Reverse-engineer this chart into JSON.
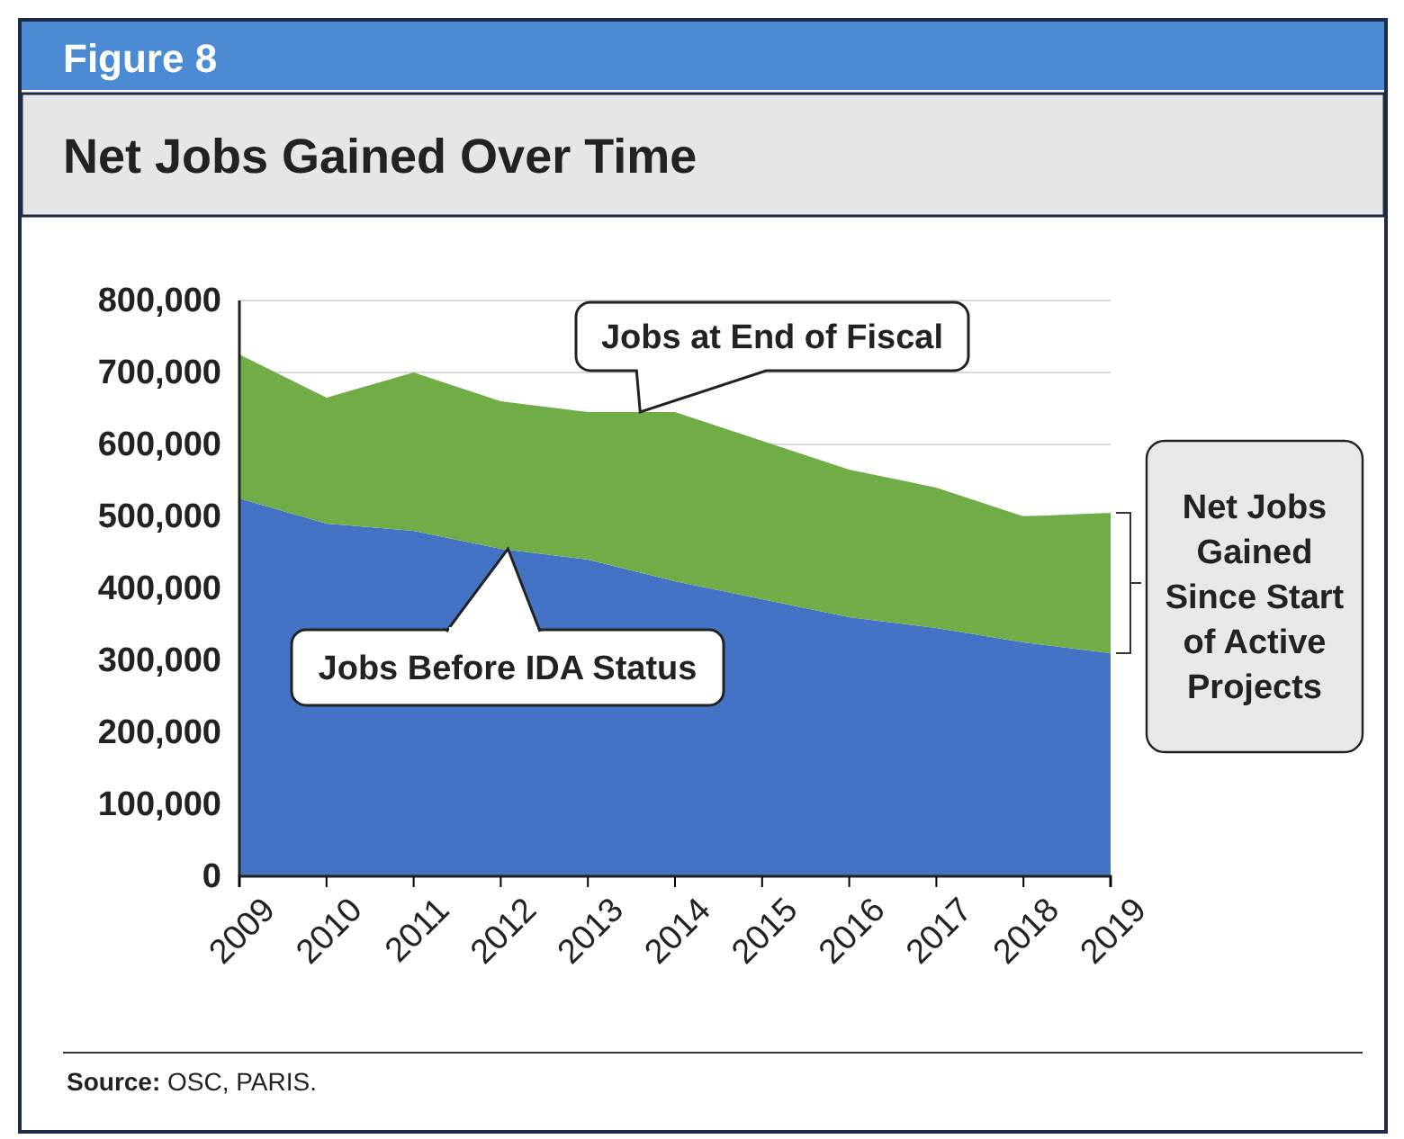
{
  "chart_data": {
    "type": "area",
    "title": "Net Jobs Gained Over Time",
    "subtitle": "Figure 8",
    "x": [
      2009,
      2010,
      2011,
      2012,
      2013,
      2014,
      2015,
      2016,
      2017,
      2018,
      2019
    ],
    "xlim": [
      2009,
      2019
    ],
    "xticks": [
      2009,
      2010,
      2011,
      2012,
      2013,
      2014,
      2015,
      2016,
      2017,
      2018,
      2019
    ],
    "ylim": [
      0,
      800000
    ],
    "yticks": [
      {
        "value": 0,
        "label": "0"
      },
      {
        "value": 100000,
        "label": "100,000"
      },
      {
        "value": 200000,
        "label": "200,000"
      },
      {
        "value": 300000,
        "label": "300,000"
      },
      {
        "value": 400000,
        "label": "400,000"
      },
      {
        "value": 500000,
        "label": "500,000"
      },
      {
        "value": 600000,
        "label": "600,000"
      },
      {
        "value": 700000,
        "label": "700,000"
      },
      {
        "value": 800000,
        "label": "800,000"
      }
    ],
    "stacked": true,
    "grid": "y",
    "series": [
      {
        "name": "Jobs Before IDA Status",
        "color": "#4472c4",
        "values": [
          525000,
          490000,
          480000,
          455000,
          440000,
          410000,
          385000,
          360000,
          345000,
          325000,
          310000
        ]
      },
      {
        "name": "Net Jobs Gained Since Start of Active Projects",
        "color": "#70ad47",
        "values": [
          200000,
          175000,
          220000,
          205000,
          205000,
          235000,
          220000,
          205000,
          195000,
          175000,
          195000
        ]
      }
    ],
    "annotations": [
      {
        "text": "Jobs at End of Fiscal",
        "x": 2013.6,
        "y": 645000
      },
      "Source: OSC, PARIS."
    ]
  }
}
